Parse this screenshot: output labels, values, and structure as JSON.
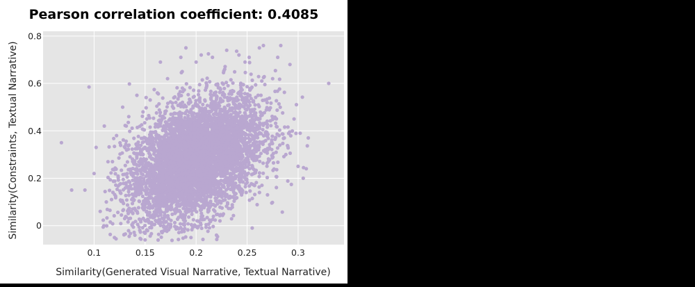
{
  "chart_data": {
    "type": "scatter",
    "title": "Pearson correlation coefficient: 0.4085",
    "xlabel": "Similarity(Generated Visual Narrative, Textual Narrative)",
    "ylabel": "Similarity(Constraints, Textual Narrative)",
    "xlim": [
      0.05,
      0.345
    ],
    "ylim": [
      -0.08,
      0.82
    ],
    "x_ticks": [
      0.1,
      0.15,
      0.2,
      0.25,
      0.3
    ],
    "x_tick_labels": [
      "0.1",
      "0.15",
      "0.2",
      "0.25",
      "0.3"
    ],
    "y_ticks": [
      0,
      0.2,
      0.4,
      0.6,
      0.8
    ],
    "y_tick_labels": [
      "0",
      "0.2",
      "0.4",
      "0.6",
      "0.8"
    ],
    "grid": true,
    "background_color": "#e5e5e5",
    "point_color": "#b9a7d0",
    "correlation": 0.4085,
    "points": [
      {
        "x": 0.068,
        "y": 0.35
      },
      {
        "x": 0.078,
        "y": 0.15
      },
      {
        "x": 0.091,
        "y": 0.15
      },
      {
        "x": 0.095,
        "y": 0.585
      },
      {
        "x": 0.1,
        "y": 0.22
      },
      {
        "x": 0.102,
        "y": 0.33
      },
      {
        "x": 0.106,
        "y": 0.06
      },
      {
        "x": 0.11,
        "y": 0.42
      },
      {
        "x": 0.112,
        "y": 0.1
      },
      {
        "x": 0.118,
        "y": 0.27
      },
      {
        "x": 0.12,
        "y": -0.05
      },
      {
        "x": 0.122,
        "y": 0.38
      },
      {
        "x": 0.128,
        "y": 0.5
      },
      {
        "x": 0.13,
        "y": 0.03
      },
      {
        "x": 0.134,
        "y": 0.46
      },
      {
        "x": 0.14,
        "y": -0.04
      },
      {
        "x": 0.142,
        "y": 0.55
      },
      {
        "x": 0.148,
        "y": 0.48
      },
      {
        "x": 0.15,
        "y": -0.06
      },
      {
        "x": 0.155,
        "y": 0.53
      },
      {
        "x": 0.162,
        "y": 0.56
      },
      {
        "x": 0.165,
        "y": 0.69
      },
      {
        "x": 0.17,
        "y": -0.02
      },
      {
        "x": 0.172,
        "y": 0.62
      },
      {
        "x": 0.185,
        "y": 0.71
      },
      {
        "x": 0.19,
        "y": 0.75
      },
      {
        "x": 0.195,
        "y": -0.05
      },
      {
        "x": 0.2,
        "y": 0.69
      },
      {
        "x": 0.205,
        "y": 0.72
      },
      {
        "x": 0.216,
        "y": 0.71
      },
      {
        "x": 0.22,
        "y": -0.04
      },
      {
        "x": 0.228,
        "y": 0.66
      },
      {
        "x": 0.23,
        "y": 0.74
      },
      {
        "x": 0.242,
        "y": 0.72
      },
      {
        "x": 0.248,
        "y": 0.69
      },
      {
        "x": 0.252,
        "y": 0.71
      },
      {
        "x": 0.255,
        "y": -0.01
      },
      {
        "x": 0.262,
        "y": 0.75
      },
      {
        "x": 0.266,
        "y": 0.76
      },
      {
        "x": 0.27,
        "y": 0.13
      },
      {
        "x": 0.275,
        "y": 0.62
      },
      {
        "x": 0.28,
        "y": 0.71
      },
      {
        "x": 0.283,
        "y": 0.76
      },
      {
        "x": 0.288,
        "y": 0.3
      },
      {
        "x": 0.292,
        "y": 0.68
      },
      {
        "x": 0.296,
        "y": 0.45
      },
      {
        "x": 0.3,
        "y": 0.25
      },
      {
        "x": 0.302,
        "y": 0.39
      },
      {
        "x": 0.305,
        "y": 0.2
      },
      {
        "x": 0.308,
        "y": 0.24
      },
      {
        "x": 0.31,
        "y": 0.37
      },
      {
        "x": 0.33,
        "y": 0.6
      }
    ]
  }
}
